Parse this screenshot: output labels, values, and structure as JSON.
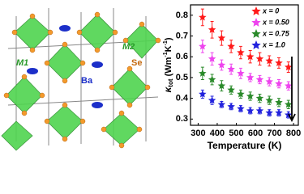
{
  "structure_labels": {
    "m1": "M1",
    "m2": "M2",
    "se": "Se",
    "ba": "Ba"
  },
  "chart_data": {
    "type": "scatter",
    "ylabel": [
      "κ",
      "tot",
      " (Wm",
      "-1",
      "K",
      "-1",
      ")"
    ],
    "xlabel": "Temperature (K)",
    "x": [
      323,
      373,
      423,
      473,
      523,
      573,
      623,
      673,
      723,
      773
    ],
    "series": [
      {
        "name": "x = 0",
        "color": "#ff1a1a",
        "values": [
          0.79,
          0.73,
          0.69,
          0.65,
          0.62,
          0.6,
          0.59,
          0.58,
          0.57,
          0.55
        ],
        "errors": [
          0.04,
          0.04,
          0.035,
          0.03,
          0.03,
          0.03,
          0.03,
          0.025,
          0.025,
          0.025
        ]
      },
      {
        "name": "x = 0.50",
        "color": "#ee44ee",
        "values": [
          0.65,
          0.59,
          0.56,
          0.54,
          0.52,
          0.5,
          0.49,
          0.48,
          0.47,
          0.46
        ],
        "errors": [
          0.03,
          0.03,
          0.025,
          0.025,
          0.025,
          0.02,
          0.02,
          0.02,
          0.02,
          0.02
        ]
      },
      {
        "name": "x = 0.75",
        "color": "#2a8a2a",
        "values": [
          0.52,
          0.49,
          0.46,
          0.44,
          0.42,
          0.41,
          0.4,
          0.39,
          0.38,
          0.37
        ],
        "errors": [
          0.03,
          0.025,
          0.025,
          0.02,
          0.02,
          0.02,
          0.02,
          0.02,
          0.02,
          0.02
        ]
      },
      {
        "name": "x = 1.0",
        "color": "#2222dd",
        "values": [
          0.42,
          0.39,
          0.37,
          0.36,
          0.35,
          0.34,
          0.34,
          0.33,
          0.33,
          0.32
        ],
        "errors": [
          0.02,
          0.02,
          0.015,
          0.015,
          0.015,
          0.015,
          0.015,
          0.015,
          0.015,
          0.015
        ]
      }
    ],
    "xlim": [
      260,
      825
    ],
    "xticks": [
      300,
      400,
      500,
      600,
      700,
      800
    ],
    "ylim": [
      0.27,
      0.85
    ],
    "yticks": [
      0.3,
      0.4,
      0.5,
      0.6,
      0.7,
      0.8
    ],
    "legend": "upper right"
  }
}
